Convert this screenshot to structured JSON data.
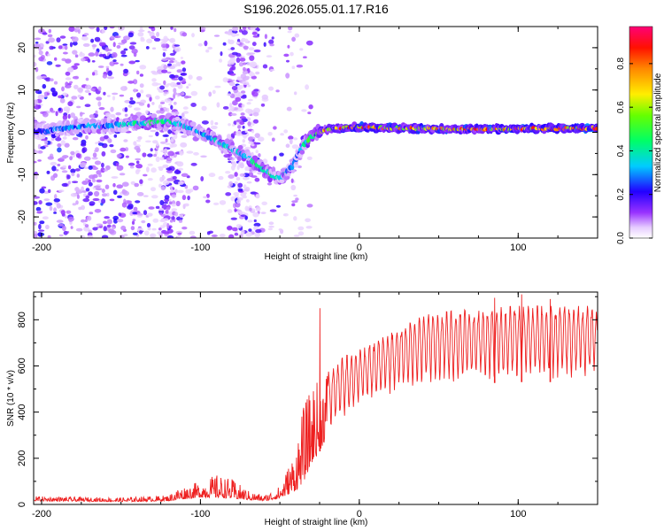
{
  "title": "S196.2026.055.01.17.R16",
  "chart_data": [
    {
      "type": "heatmap",
      "name": "spectrogram",
      "xlabel": "Height of straight line (km)",
      "ylabel": "Frequency (Hz)",
      "xlim": [
        -205,
        150
      ],
      "ylim": [
        -25,
        25
      ],
      "xticks": [
        -200,
        -100,
        0,
        100
      ],
      "yticks": [
        -20,
        -10,
        0,
        10,
        20
      ],
      "colorbar": {
        "label": "Normalized spectral amplitude",
        "range": [
          0,
          0.97
        ],
        "ticks": [
          0.0,
          0.2,
          0.4,
          0.6,
          0.8
        ],
        "tick_labels": [
          "0.0",
          "0.2",
          "0.4",
          "0.6",
          "0.8"
        ],
        "colors": [
          "#ffffff",
          "#cc99ff",
          "#7700dd",
          "#0000ff",
          "#00ccff",
          "#00ff44",
          "#ffff00",
          "#ff8800",
          "#ff0000",
          "#ff0077"
        ]
      },
      "ridge": {
        "x": [
          -205,
          -195,
          -185,
          -175,
          -160,
          -145,
          -130,
          -120,
          -110,
          -100,
          -90,
          -80,
          -70,
          -60,
          -50,
          -42,
          -38,
          -35,
          -30,
          -25,
          -20,
          -10,
          0,
          20,
          50,
          100,
          150
        ],
        "freq": [
          0,
          0.5,
          1,
          1.5,
          1.5,
          2,
          2.5,
          2.5,
          1.5,
          0,
          -2,
          -4,
          -6,
          -9,
          -11,
          -8,
          -5,
          -3,
          -1,
          0,
          0.8,
          1,
          1.2,
          1,
          0.8,
          0.8,
          1
        ],
        "amplitude": [
          0.25,
          0.25,
          0.3,
          0.3,
          0.3,
          0.35,
          0.45,
          0.4,
          0.35,
          0.3,
          0.4,
          0.35,
          0.4,
          0.45,
          0.35,
          0.3,
          0.3,
          0.4,
          0.5,
          0.55,
          0.6,
          0.75,
          0.8,
          0.7,
          0.72,
          0.8,
          0.8
        ]
      }
    },
    {
      "type": "line",
      "name": "snr",
      "xlabel": "Height of straight line (km)",
      "ylabel": "SNR (10 * v/v)",
      "xlim": [
        -205,
        150
      ],
      "ylim": [
        0,
        920
      ],
      "xticks": [
        -200,
        -100,
        0,
        100
      ],
      "yticks": [
        0,
        200,
        400,
        600,
        800
      ],
      "color": "#ee2020",
      "envelope": {
        "x": [
          -205,
          -150,
          -120,
          -115,
          -100,
          -90,
          -80,
          -70,
          -60,
          -50,
          -40,
          -35,
          -30,
          -25,
          -20,
          -10,
          0,
          10,
          20,
          30,
          40,
          50,
          60,
          80,
          100,
          120,
          150
        ],
        "low": [
          15,
          12,
          15,
          20,
          30,
          30,
          25,
          20,
          15,
          25,
          60,
          100,
          180,
          230,
          300,
          370,
          420,
          450,
          480,
          500,
          510,
          520,
          520,
          525,
          530,
          530,
          540
        ],
        "high": [
          35,
          30,
          40,
          70,
          100,
          130,
          110,
          60,
          40,
          80,
          250,
          420,
          500,
          540,
          580,
          640,
          670,
          700,
          750,
          780,
          820,
          830,
          840,
          850,
          860,
          860,
          860
        ]
      },
      "spikes": [
        {
          "x": -25,
          "y": 850
        },
        {
          "x": 102,
          "y": 910
        },
        {
          "x": 85,
          "y": 895
        },
        {
          "x": 120,
          "y": 890
        }
      ]
    }
  ]
}
